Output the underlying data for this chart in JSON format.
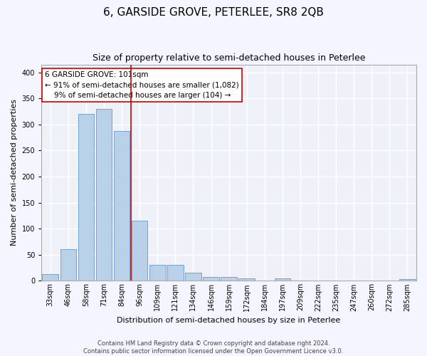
{
  "title": "6, GARSIDE GROVE, PETERLEE, SR8 2QB",
  "subtitle": "Size of property relative to semi-detached houses in Peterlee",
  "xlabel": "Distribution of semi-detached houses by size in Peterlee",
  "ylabel": "Number of semi-detached properties",
  "categories": [
    "33sqm",
    "46sqm",
    "58sqm",
    "71sqm",
    "84sqm",
    "96sqm",
    "109sqm",
    "121sqm",
    "134sqm",
    "146sqm",
    "159sqm",
    "172sqm",
    "184sqm",
    "197sqm",
    "209sqm",
    "222sqm",
    "235sqm",
    "247sqm",
    "260sqm",
    "272sqm",
    "285sqm"
  ],
  "values": [
    13,
    60,
    320,
    330,
    287,
    115,
    30,
    30,
    15,
    8,
    7,
    4,
    1,
    5,
    0,
    0,
    0,
    0,
    0,
    0,
    3
  ],
  "bar_color": "#b8d0e8",
  "bar_edge_color": "#6699cc",
  "property_line_x": 4.5,
  "property_line_color": "#cc0000",
  "annotation_text": "6 GARSIDE GROVE: 101sqm\n← 91% of semi-detached houses are smaller (1,082)\n    9% of semi-detached houses are larger (104) →",
  "annotation_box_color": "#ffffff",
  "annotation_box_edge": "#cc0000",
  "footer_line1": "Contains HM Land Registry data © Crown copyright and database right 2024.",
  "footer_line2": "Contains public sector information licensed under the Open Government Licence v3.0.",
  "ylim": [
    0,
    415
  ],
  "yticks": [
    0,
    50,
    100,
    150,
    200,
    250,
    300,
    350,
    400
  ],
  "background_color": "#eef2f8",
  "grid_color": "#ffffff",
  "title_fontsize": 11,
  "subtitle_fontsize": 9,
  "annotation_fontsize": 7.5,
  "axis_label_fontsize": 8,
  "tick_fontsize": 7,
  "footer_fontsize": 6
}
